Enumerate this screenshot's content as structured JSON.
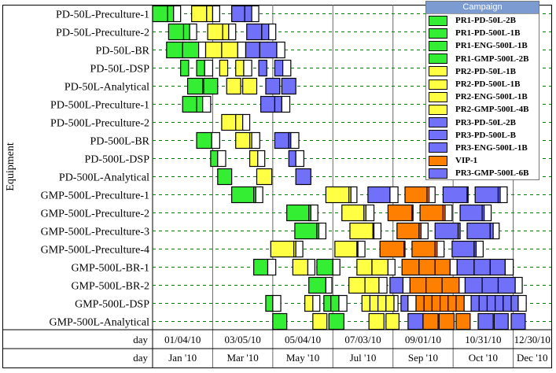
{
  "chart_data": {
    "type": "gantt",
    "ylabel": "Equipment",
    "x_unit": "days from chart start",
    "xlim": [
      0,
      398
    ],
    "gridlines_x": [
      60,
      120,
      180,
      240,
      300,
      360
    ],
    "day_ticks": [
      "01/04/10",
      "03/05/10",
      "05/04/10",
      "07/03/10",
      "09/01/10",
      "10/31/10",
      "12/30/10"
    ],
    "month_ticks": [
      "Jan '10",
      "Mar '10",
      "May '10",
      "Jul '10",
      "Sep '10",
      "Oct '10",
      "Dec '10"
    ],
    "axis_row_labels": [
      "day",
      "day"
    ],
    "colors": {
      "g": "#33ee33",
      "y": "#ffff44",
      "b": "#7070f8",
      "o": "#ff8000",
      "w": "#ffffff"
    },
    "legend": {
      "title": "Campaign",
      "items": [
        {
          "label": "PR1-PD-50L-2B",
          "color": "g"
        },
        {
          "label": "PR1-PD-500L-1B",
          "color": "g"
        },
        {
          "label": "PR1-ENG-500L-1B",
          "color": "g"
        },
        {
          "label": "PR1-GMP-500L-2B",
          "color": "g"
        },
        {
          "label": "PR2-PD-50L-1B",
          "color": "y"
        },
        {
          "label": "PR2-PD-500L-1B",
          "color": "y"
        },
        {
          "label": "PR2-ENG-500L-1B",
          "color": "y"
        },
        {
          "label": "PR2-GMP-500L-4B",
          "color": "y"
        },
        {
          "label": "PR3-PD-50L-2B",
          "color": "b"
        },
        {
          "label": "PR3-PD-500L-B",
          "color": "b"
        },
        {
          "label": "PR3-ENG-500L-1B",
          "color": "b"
        },
        {
          "label": "VIP-1",
          "color": "o"
        },
        {
          "label": "PR3-GMP-500L-6B",
          "color": "b"
        }
      ]
    },
    "rows": [
      {
        "label": "PD-50L-Preculture-1",
        "bars": [
          [
            0,
            15,
            "g"
          ],
          [
            15,
            21,
            "g"
          ],
          [
            21,
            28,
            "w"
          ],
          [
            39,
            54,
            "y"
          ],
          [
            54,
            60,
            "y"
          ],
          [
            60,
            67,
            "w"
          ],
          [
            79,
            92,
            "b"
          ],
          [
            92,
            99,
            "b"
          ],
          [
            99,
            106,
            "w"
          ]
        ]
      },
      {
        "label": "PD-50L-Preculture-2",
        "bars": [
          [
            16,
            31,
            "g"
          ],
          [
            31,
            37,
            "g"
          ],
          [
            37,
            44,
            "w"
          ],
          [
            55,
            70,
            "y"
          ],
          [
            70,
            76,
            "y"
          ],
          [
            76,
            83,
            "w"
          ],
          [
            94,
            109,
            "b"
          ],
          [
            109,
            116,
            "b"
          ],
          [
            116,
            123,
            "w"
          ]
        ]
      },
      {
        "label": "PD-50L-BR",
        "bars": [
          [
            14,
            30,
            "g"
          ],
          [
            30,
            46,
            "g"
          ],
          [
            46,
            53,
            "w"
          ],
          [
            53,
            69,
            "y"
          ],
          [
            69,
            85,
            "y"
          ],
          [
            85,
            93,
            "w"
          ],
          [
            93,
            107,
            "b"
          ],
          [
            107,
            124,
            "b"
          ],
          [
            124,
            132,
            "w"
          ]
        ]
      },
      {
        "label": "PD-50L-DSP",
        "bars": [
          [
            28,
            36,
            "g"
          ],
          [
            44,
            52,
            "g"
          ],
          [
            52,
            60,
            "w"
          ],
          [
            67,
            75,
            "y"
          ],
          [
            83,
            91,
            "y"
          ],
          [
            91,
            99,
            "w"
          ],
          [
            106,
            114,
            "b"
          ],
          [
            122,
            130,
            "b"
          ],
          [
            130,
            138,
            "w"
          ]
        ]
      },
      {
        "label": "PD-50L-Analytical",
        "bars": [
          [
            35,
            50,
            "g"
          ],
          [
            51,
            65,
            "g"
          ],
          [
            74,
            88,
            "y"
          ],
          [
            90,
            104,
            "y"
          ],
          [
            113,
            127,
            "b"
          ],
          [
            129,
            143,
            "b"
          ]
        ]
      },
      {
        "label": "PD-500L-Preculture-1",
        "bars": [
          [
            30,
            44,
            "g"
          ],
          [
            44,
            50,
            "g"
          ],
          [
            50,
            58,
            "w"
          ],
          [
            108,
            122,
            "b"
          ],
          [
            122,
            129,
            "b"
          ],
          [
            129,
            137,
            "w"
          ]
        ]
      },
      {
        "label": "PD-500L-Preculture-2",
        "bars": [
          [
            69,
            83,
            "y"
          ],
          [
            83,
            90,
            "y"
          ],
          [
            90,
            97,
            "w"
          ]
        ]
      },
      {
        "label": "PD-500L-BR",
        "bars": [
          [
            44,
            59,
            "g"
          ],
          [
            59,
            67,
            "w"
          ],
          [
            83,
            97,
            "y"
          ],
          [
            97,
            99,
            "y"
          ],
          [
            99,
            107,
            "w"
          ],
          [
            122,
            136,
            "b"
          ],
          [
            136,
            138,
            "b"
          ],
          [
            138,
            146,
            "w"
          ]
        ]
      },
      {
        "label": "PD-500L-DSP",
        "bars": [
          [
            58,
            65,
            "g"
          ],
          [
            65,
            73,
            "w"
          ],
          [
            97,
            105,
            "y"
          ],
          [
            105,
            112,
            "w"
          ],
          [
            136,
            143,
            "b"
          ],
          [
            143,
            151,
            "w"
          ]
        ]
      },
      {
        "label": "PD-500L-Analytical",
        "bars": [
          [
            65,
            79,
            "g"
          ],
          [
            104,
            119,
            "y"
          ],
          [
            143,
            158,
            "b"
          ]
        ]
      },
      {
        "label": "GMP-500L-Preculture-1",
        "bars": [
          [
            79,
            101,
            "g"
          ],
          [
            101,
            103,
            "g"
          ],
          [
            103,
            110,
            "w"
          ],
          [
            173,
            196,
            "y"
          ],
          [
            196,
            198,
            "y"
          ],
          [
            198,
            204,
            "w"
          ],
          [
            215,
            237,
            "b"
          ],
          [
            237,
            245,
            "w"
          ],
          [
            252,
            274,
            "o"
          ],
          [
            274,
            276,
            "o"
          ],
          [
            276,
            282,
            "w"
          ],
          [
            290,
            314,
            "b"
          ],
          [
            314,
            315,
            "b"
          ],
          [
            322,
            345,
            "b"
          ],
          [
            345,
            347,
            "b"
          ],
          [
            347,
            354,
            "w"
          ]
        ]
      },
      {
        "label": "GMP-500L-Preculture-2",
        "bars": [
          [
            134,
            156,
            "g"
          ],
          [
            156,
            158,
            "g"
          ],
          [
            158,
            165,
            "w"
          ],
          [
            189,
            211,
            "y"
          ],
          [
            211,
            213,
            "y"
          ],
          [
            213,
            221,
            "w"
          ],
          [
            235,
            259,
            "o"
          ],
          [
            259,
            260,
            "o"
          ],
          [
            267,
            290,
            "o"
          ],
          [
            290,
            292,
            "o"
          ],
          [
            292,
            299,
            "w"
          ],
          [
            307,
            329,
            "b"
          ],
          [
            329,
            331,
            "b"
          ],
          [
            331,
            338,
            "w"
          ]
        ]
      },
      {
        "label": "GMP-500L-Preculture-3",
        "bars": [
          [
            142,
            164,
            "g"
          ],
          [
            164,
            166,
            "g"
          ],
          [
            166,
            173,
            "w"
          ],
          [
            197,
            220,
            "y"
          ],
          [
            220,
            221,
            "y"
          ],
          [
            221,
            228,
            "w"
          ],
          [
            244,
            266,
            "o"
          ],
          [
            266,
            268,
            "o"
          ],
          [
            268,
            275,
            "w"
          ],
          [
            282,
            305,
            "b"
          ],
          [
            305,
            307,
            "b"
          ],
          [
            314,
            337,
            "b"
          ],
          [
            337,
            340,
            "b"
          ],
          [
            340,
            346,
            "w"
          ]
        ]
      },
      {
        "label": "GMP-500L-Preculture-4",
        "bars": [
          [
            118,
            141,
            "y"
          ],
          [
            141,
            143,
            "y"
          ],
          [
            143,
            150,
            "w"
          ],
          [
            182,
            204,
            "y"
          ],
          [
            204,
            205,
            "y"
          ],
          [
            205,
            212,
            "w"
          ],
          [
            227,
            251,
            "o"
          ],
          [
            251,
            252,
            "o"
          ],
          [
            259,
            282,
            "o"
          ],
          [
            282,
            284,
            "o"
          ],
          [
            284,
            291,
            "w"
          ],
          [
            299,
            321,
            "b"
          ],
          [
            321,
            323,
            "b"
          ],
          [
            323,
            330,
            "w"
          ]
        ]
      },
      {
        "label": "GMP-500L-BR-1",
        "bars": [
          [
            101,
            115,
            "g"
          ],
          [
            115,
            123,
            "w"
          ],
          [
            140,
            155,
            "y"
          ],
          [
            155,
            162,
            "w"
          ],
          [
            164,
            180,
            "g"
          ],
          [
            180,
            187,
            "w"
          ],
          [
            204,
            219,
            "y"
          ],
          [
            219,
            235,
            "y"
          ],
          [
            235,
            242,
            "w"
          ],
          [
            249,
            266,
            "o"
          ],
          [
            266,
            282,
            "o"
          ],
          [
            282,
            297,
            "o"
          ],
          [
            297,
            304,
            "w"
          ],
          [
            304,
            321,
            "b"
          ],
          [
            321,
            337,
            "b"
          ],
          [
            337,
            352,
            "b"
          ],
          [
            352,
            360,
            "w"
          ]
        ]
      },
      {
        "label": "GMP-500L-BR-2",
        "bars": [
          [
            156,
            173,
            "g"
          ],
          [
            173,
            179,
            "w"
          ],
          [
            196,
            212,
            "y"
          ],
          [
            212,
            226,
            "y"
          ],
          [
            226,
            234,
            "w"
          ],
          [
            237,
            250,
            "b"
          ],
          [
            250,
            257,
            "w"
          ],
          [
            257,
            273,
            "o"
          ],
          [
            273,
            289,
            "o"
          ],
          [
            289,
            306,
            "o"
          ],
          [
            306,
            312,
            "w"
          ],
          [
            312,
            329,
            "b"
          ],
          [
            329,
            345,
            "b"
          ],
          [
            345,
            362,
            "b"
          ],
          [
            362,
            369,
            "w"
          ]
        ]
      },
      {
        "label": "GMP-500L-DSP",
        "bars": [
          [
            113,
            120,
            "g"
          ],
          [
            120,
            128,
            "w"
          ],
          [
            152,
            160,
            "y"
          ],
          [
            160,
            167,
            "w"
          ],
          [
            171,
            178,
            "g"
          ],
          [
            178,
            186,
            "g"
          ],
          [
            186,
            194,
            "w"
          ],
          [
            209,
            217,
            "y"
          ],
          [
            217,
            225,
            "y"
          ],
          [
            225,
            233,
            "y"
          ],
          [
            233,
            241,
            "y"
          ],
          [
            241,
            245,
            "w"
          ],
          [
            248,
            255,
            "b"
          ],
          [
            255,
            263,
            "w"
          ],
          [
            263,
            271,
            "o"
          ],
          [
            271,
            279,
            "o"
          ],
          [
            279,
            287,
            "o"
          ],
          [
            287,
            295,
            "o"
          ],
          [
            295,
            303,
            "o"
          ],
          [
            303,
            311,
            "o"
          ],
          [
            311,
            318,
            "w"
          ],
          [
            318,
            326,
            "b"
          ],
          [
            326,
            334,
            "b"
          ],
          [
            334,
            342,
            "b"
          ],
          [
            342,
            350,
            "b"
          ],
          [
            350,
            358,
            "b"
          ],
          [
            358,
            365,
            "b"
          ],
          [
            365,
            373,
            "w"
          ]
        ]
      },
      {
        "label": "GMP-500L-Analytical",
        "bars": [
          [
            120,
            134,
            "g"
          ],
          [
            160,
            174,
            "y"
          ],
          [
            176,
            191,
            "g"
          ],
          [
            216,
            231,
            "y"
          ],
          [
            233,
            246,
            "y"
          ],
          [
            255,
            270,
            "b"
          ],
          [
            270,
            285,
            "o"
          ],
          [
            286,
            301,
            "o"
          ],
          [
            303,
            317,
            "o"
          ],
          [
            325,
            340,
            "b"
          ],
          [
            341,
            355,
            "b"
          ],
          [
            358,
            372,
            "b"
          ]
        ]
      }
    ]
  }
}
